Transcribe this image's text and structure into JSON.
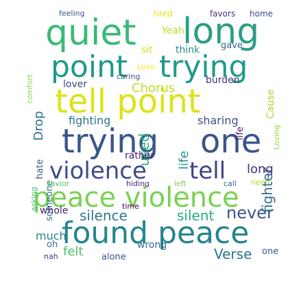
{
  "word_cloud": {
    "words": [
      {
        "text": "quiet",
        "color": "#3aba76"
      },
      {
        "text": "long",
        "color": "#2d9d87"
      },
      {
        "text": "point",
        "color": "#1f9a8a"
      },
      {
        "text": "trying",
        "color": "#1e9b8a"
      },
      {
        "text": "tell point",
        "color": "#dde318"
      },
      {
        "text": "trying",
        "color": "#38568c"
      },
      {
        "text": "one",
        "color": "#3a538b"
      },
      {
        "text": "violence",
        "color": "#3e4a89"
      },
      {
        "text": "tell",
        "color": "#404388"
      },
      {
        "text": "peace violence",
        "color": "#7ad151"
      },
      {
        "text": "found peace",
        "color": "#25858e"
      },
      {
        "text": "never",
        "color": "#3b528b"
      },
      {
        "text": "silence",
        "color": "#2a788e"
      },
      {
        "text": "silent",
        "color": "#28ae80"
      },
      {
        "text": "fighter",
        "color": "#2d708e"
      },
      {
        "text": "Verse",
        "color": "#2a768e"
      },
      {
        "text": "long",
        "color": "#472c7a"
      },
      {
        "text": "felt",
        "color": "#4ac16d"
      },
      {
        "text": "much",
        "color": "#26818e"
      },
      {
        "text": "Chorus",
        "color": "#c0df25"
      },
      {
        "text": "used",
        "color": "#29af7f"
      },
      {
        "text": "Drop",
        "color": "#2c718e"
      },
      {
        "text": "life",
        "color": "#1f968b"
      },
      {
        "text": "sharing",
        "color": "#3b528b"
      },
      {
        "text": "fighting",
        "color": "#2a778e"
      },
      {
        "text": "Yeah",
        "color": "#b5de2b"
      },
      {
        "text": "think",
        "color": "#228d8d"
      },
      {
        "text": "gave",
        "color": "#33628d"
      },
      {
        "text": "sit",
        "color": "#d8e219"
      },
      {
        "text": "lover",
        "color": "#3f4788"
      },
      {
        "text": "burden",
        "color": "#46337e"
      },
      {
        "text": "Cause",
        "color": "#a8db34"
      },
      {
        "text": "caring",
        "color": "#38598c"
      },
      {
        "text": "Love",
        "color": "#fde725"
      },
      {
        "text": "tired",
        "color": "#e5e419"
      },
      {
        "text": "favors",
        "color": "#472f7d"
      },
      {
        "text": "home",
        "color": "#3e4989"
      },
      {
        "text": "feeling",
        "color": "#3c508b"
      },
      {
        "text": "comfort",
        "color": "#8bd646"
      },
      {
        "text": "Loving",
        "color": "#95d840"
      },
      {
        "text": "rather",
        "color": "#481f70"
      },
      {
        "text": "hate",
        "color": "#3b528b"
      },
      {
        "text": "someone",
        "color": "#2d708e"
      },
      {
        "text": "asking",
        "color": "#3dbc74"
      },
      {
        "text": "savior",
        "color": "#4ac16d"
      },
      {
        "text": "hiding",
        "color": "#482878"
      },
      {
        "text": "left",
        "color": "#7ad151"
      },
      {
        "text": "call",
        "color": "#31688e"
      },
      {
        "text": "need",
        "color": "#a5db36"
      },
      {
        "text": "time",
        "color": "#440154"
      },
      {
        "text": "whole",
        "color": "#482173"
      },
      {
        "text": "oh",
        "color": "#2c728e"
      },
      {
        "text": "alone",
        "color": "#3b528b"
      },
      {
        "text": "wrong",
        "color": "#2e6e8e"
      },
      {
        "text": "one",
        "color": "#39558c"
      },
      {
        "text": "nah",
        "color": "#46327e"
      },
      {
        "text": "life",
        "color": "#481769"
      }
    ]
  }
}
